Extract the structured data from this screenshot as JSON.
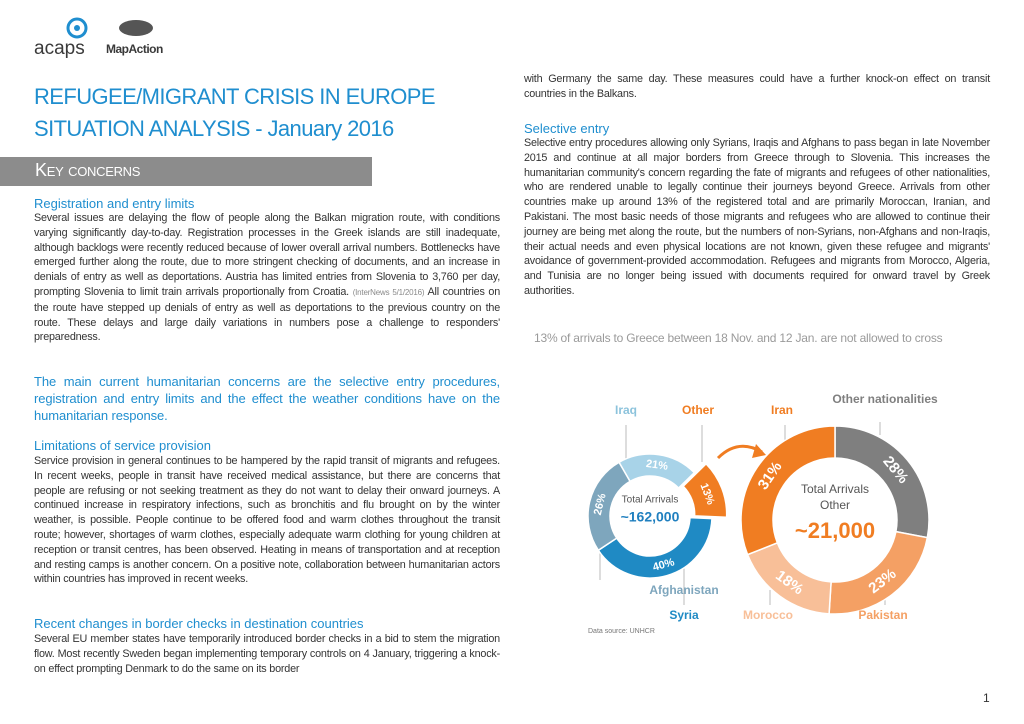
{
  "header": {
    "logos": [
      "acaps",
      "MapAction"
    ],
    "title": [
      "REFUGEE/MIGRANT CRISIS IN EUROPE",
      "SITUATION ANALYSIS - January 2016"
    ]
  },
  "section_banner": "Key concerns",
  "sections": [
    {
      "heading": "Registration and entry limits",
      "text_before": "Several issues are delaying the flow of people along the Balkan migration route, with conditions varying significantly day-to-day. Registration processes in the Greek islands are still inadequate, although backlogs were recently reduced because of lower overall arrival numbers. Bottlenecks have emerged further along the route, due to more stringent checking of documents, and an increase in denials of entry as well as deportations. Austria has limited entries from Slovenia to 3,760 per day, prompting Slovenia to limit train arrivals proportionally from Croatia.",
      "source": "(InterNews 5/1/2016)",
      "text_after": "All countries on the route have stepped up denials of entry as well as deportations to the previous country on the route. These delays and large daily variations in numbers pose a challenge to responders' preparedness."
    },
    {
      "highlight": "The main current humanitarian concerns are the selective entry procedures, registration and entry limits and the effect the weather conditions have on the humanitarian response."
    },
    {
      "heading": "Limitations of service provision",
      "text": "Service provision in general continues to be hampered by the rapid transit of migrants and refugees. In recent weeks, people in transit have received medical assistance, but there are concerns that people are refusing or not seeking treatment as they do not want to delay their onward journeys. A continued increase in respiratory infections, such as bronchitis and flu brought on by the winter weather, is possible. People continue to be offered food and warm clothes throughout the transit route; however, shortages of warm clothes, especially adequate warm clothing for young children at reception or transit centres, has been observed. Heating in means of transportation and at reception and resting camps is another concern. On a positive note, collaboration between humanitarian actors within countries has improved in recent weeks."
    },
    {
      "heading": "Recent changes in border checks in destination countries",
      "text": "Several EU member states have temporarily introduced border checks in a bid to stem the migration flow. Most recently Sweden began implementing temporary controls on 4 January, triggering a knock-on effect prompting Denmark to do the same on its border",
      "text_continued": "with Germany the same day. These measures could have a further knock-on effect on transit countries in the Balkans."
    },
    {
      "heading": "Selective entry",
      "text": "Selective entry procedures allowing only Syrians, Iraqis and Afghans to pass began in late November 2015 and continue at all major borders from Greece through to Slovenia. This increases the humanitarian community's concern regarding the fate of migrants and refugees of other nationalities, who are rendered unable to legally continue their journeys beyond Greece. Arrivals from other countries make up around 13% of the registered total and are primarily Moroccan, Iranian, and Pakistani. The most basic needs of those migrants and refugees who are allowed to continue their journey are being met along the route, but the numbers of non-Syrians, non-Afghans and non-Iraqis, their actual needs and even physical locations are not known, given these refugee and migrants' avoidance of government-provided accommodation. Refugees and migrants from Morocco, Algeria, and Tunisia are no longer being issued with documents required for onward travel by Greek authorities."
    }
  ],
  "chart": {
    "title": "13% of arrivals to Greece between 18 Nov. and 12 Jan. are not allowed to cross",
    "source": "Data source: UNHCR",
    "donuts": [
      {
        "type": "donut",
        "center_lines": [
          "Total Arrivals"
        ],
        "center_value": "~162,000",
        "center_value_color": "#1f7fbf",
        "categories": [
          "Iraq",
          "Other",
          "Syria",
          "Afghanistan"
        ],
        "values": [
          21,
          13,
          40,
          26
        ],
        "value_labels": [
          "21%",
          "13%",
          "40%",
          "26%"
        ],
        "colors": [
          "#a8d3e8",
          "#f07d22",
          "#1f8ac4",
          "#7ea6bd"
        ],
        "explode": [
          false,
          true,
          false,
          false
        ]
      },
      {
        "type": "donut",
        "center_lines": [
          "Total Arrivals",
          "Other"
        ],
        "center_value": "~21,000",
        "center_value_color": "#f07d22",
        "categories": [
          "Other nationalities",
          "Pakistan",
          "Morocco",
          "Iran"
        ],
        "values": [
          28,
          23,
          18,
          31
        ],
        "value_labels": [
          "28%",
          "23%",
          "18%",
          "31%"
        ],
        "colors": [
          "#7f7f7f",
          "#f4a064",
          "#f8bf98",
          "#f07d22"
        ],
        "explode": [
          false,
          false,
          false,
          false
        ]
      }
    ]
  },
  "page_number": "1"
}
